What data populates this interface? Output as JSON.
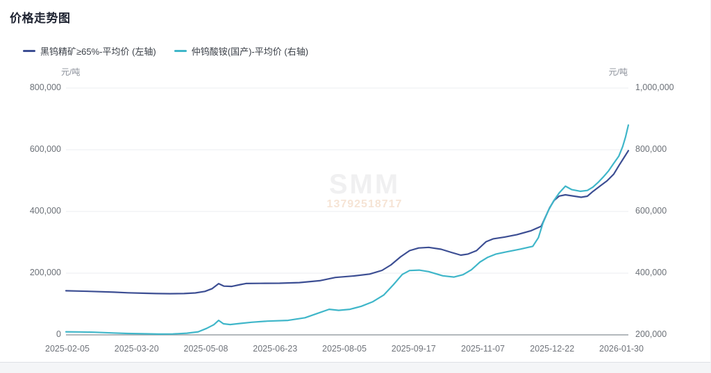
{
  "page": {
    "title": "价格走势图"
  },
  "watermark": {
    "logo": "SMM",
    "code": "13792518717"
  },
  "chart_data": {
    "type": "line",
    "title": "价格走势图",
    "grid": true,
    "legend_position": "top-left",
    "x_axis": {
      "labels": [
        "2025-02-05",
        "2025-03-20",
        "2025-05-08",
        "2025-06-23",
        "2025-08-05",
        "2025-09-17",
        "2025-11-07",
        "2025-12-22",
        "2026-01-30"
      ]
    },
    "axes": {
      "left": {
        "unit": "元/吨",
        "min": 0,
        "max": 800000,
        "ticks": [
          0,
          200000,
          400000,
          600000,
          800000
        ]
      },
      "right": {
        "unit": "元/吨",
        "min": 200000,
        "max": 1000000,
        "ticks": [
          200000,
          400000,
          600000,
          800000,
          1000000
        ]
      }
    },
    "series": [
      {
        "name": "黑钨精矿≥65%-平均价 (左轴)",
        "axis": "left",
        "color": "#3C4E93",
        "points": [
          [
            0.0,
            143000
          ],
          [
            0.022,
            142000
          ],
          [
            0.045,
            141000
          ],
          [
            0.085,
            138500
          ],
          [
            0.11,
            136500
          ],
          [
            0.136,
            135000
          ],
          [
            0.16,
            134000
          ],
          [
            0.185,
            133500
          ],
          [
            0.21,
            134000
          ],
          [
            0.23,
            136000
          ],
          [
            0.247,
            141000
          ],
          [
            0.26,
            150000
          ],
          [
            0.2715,
            166000
          ],
          [
            0.281,
            158000
          ],
          [
            0.295,
            157000
          ],
          [
            0.31,
            163000
          ],
          [
            0.32,
            166500
          ],
          [
            0.345,
            167000
          ],
          [
            0.38,
            167500
          ],
          [
            0.415,
            169500
          ],
          [
            0.451,
            175500
          ],
          [
            0.479,
            186000
          ],
          [
            0.512,
            191000
          ],
          [
            0.54,
            197000
          ],
          [
            0.562,
            209000
          ],
          [
            0.578,
            227000
          ],
          [
            0.595,
            253000
          ],
          [
            0.611,
            273000
          ],
          [
            0.627,
            281500
          ],
          [
            0.645,
            283500
          ],
          [
            0.667,
            277500
          ],
          [
            0.685,
            267500
          ],
          [
            0.702,
            258500
          ],
          [
            0.715,
            262000
          ],
          [
            0.73,
            273000
          ],
          [
            0.747,
            302000
          ],
          [
            0.76,
            311500
          ],
          [
            0.78,
            317000
          ],
          [
            0.802,
            325000
          ],
          [
            0.827,
            337500
          ],
          [
            0.845,
            352000
          ],
          [
            0.852,
            380000
          ],
          [
            0.86,
            412000
          ],
          [
            0.868,
            436000
          ],
          [
            0.877,
            450000
          ],
          [
            0.888,
            454000
          ],
          [
            0.9,
            450500
          ],
          [
            0.916,
            446000
          ],
          [
            0.927,
            449500
          ],
          [
            0.937,
            465000
          ],
          [
            0.95,
            483000
          ],
          [
            0.962,
            499000
          ],
          [
            0.974,
            521000
          ],
          [
            0.984,
            551000
          ],
          [
            0.992,
            574000
          ],
          [
            1.0,
            597000
          ]
        ]
      },
      {
        "name": "仲钨酸铵(国产)-平均价 (右轴)",
        "axis": "right",
        "color": "#3FB6C9",
        "points": [
          [
            0.0,
            210000
          ],
          [
            0.025,
            209500
          ],
          [
            0.05,
            208500
          ],
          [
            0.085,
            206000
          ],
          [
            0.11,
            204500
          ],
          [
            0.136,
            203500
          ],
          [
            0.165,
            202500
          ],
          [
            0.19,
            203000
          ],
          [
            0.215,
            205500
          ],
          [
            0.235,
            210000
          ],
          [
            0.25,
            221000
          ],
          [
            0.263,
            233000
          ],
          [
            0.2715,
            247000
          ],
          [
            0.28,
            236000
          ],
          [
            0.292,
            233500
          ],
          [
            0.31,
            237000
          ],
          [
            0.33,
            241000
          ],
          [
            0.358,
            244500
          ],
          [
            0.395,
            247000
          ],
          [
            0.425,
            255500
          ],
          [
            0.447,
            269500
          ],
          [
            0.468,
            283000
          ],
          [
            0.485,
            279500
          ],
          [
            0.505,
            283000
          ],
          [
            0.525,
            292500
          ],
          [
            0.545,
            307000
          ],
          [
            0.565,
            329000
          ],
          [
            0.582,
            362000
          ],
          [
            0.598,
            396000
          ],
          [
            0.611,
            408500
          ],
          [
            0.628,
            410000
          ],
          [
            0.645,
            405000
          ],
          [
            0.67,
            391500
          ],
          [
            0.69,
            387500
          ],
          [
            0.706,
            395000
          ],
          [
            0.721,
            411000
          ],
          [
            0.736,
            436000
          ],
          [
            0.75,
            451500
          ],
          [
            0.764,
            461500
          ],
          [
            0.783,
            469000
          ],
          [
            0.808,
            478000
          ],
          [
            0.83,
            487000
          ],
          [
            0.84,
            515000
          ],
          [
            0.848,
            562000
          ],
          [
            0.858,
            604000
          ],
          [
            0.867,
            634000
          ],
          [
            0.877,
            660000
          ],
          [
            0.888,
            682000
          ],
          [
            0.899,
            671000
          ],
          [
            0.915,
            665500
          ],
          [
            0.927,
            668000
          ],
          [
            0.937,
            679000
          ],
          [
            0.946,
            694000
          ],
          [
            0.956,
            713000
          ],
          [
            0.965,
            732000
          ],
          [
            0.974,
            756000
          ],
          [
            0.983,
            779000
          ],
          [
            0.99,
            811000
          ],
          [
            0.995,
            842000
          ],
          [
            1.0,
            880000
          ]
        ]
      }
    ]
  }
}
